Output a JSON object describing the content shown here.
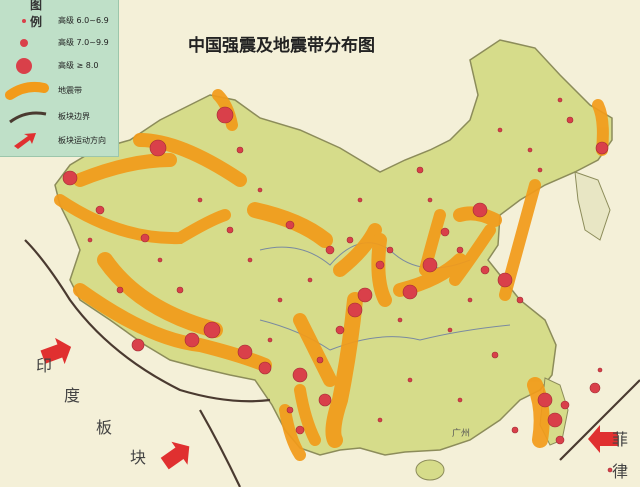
{
  "map": {
    "title": "中国强震及地震带分布图"
  },
  "legend": {
    "title": "图 例",
    "items": [
      {
        "label": "高级 6.0~6.9",
        "symbol": "small-dot-icon"
      },
      {
        "label": "高级 7.0~9.9",
        "symbol": "medium-dot-icon"
      },
      {
        "label": "高级 ≥ 8.0",
        "symbol": "large-dot-icon"
      },
      {
        "label": "地震带",
        "symbol": "seismic-belt-icon"
      },
      {
        "label": "板块边界",
        "symbol": "plate-boundary-icon"
      },
      {
        "label": "板块运动方向",
        "symbol": "plate-motion-arrow-icon"
      }
    ]
  },
  "plates": {
    "india": [
      "印",
      "度",
      "板",
      "块"
    ],
    "philippine": [
      "菲",
      "律"
    ]
  },
  "cities": [
    "广州"
  ],
  "colors": {
    "land": "#d6dc8a",
    "land_edge": "#8c8c5a",
    "sea": "#f4f0d8",
    "belt": "#f29b1a",
    "belt_edge": "#d06a10",
    "quake": "#d9404a",
    "legend_bg": "#bfe0c8",
    "boundary": "#4a3a30",
    "arrow": "#e03030"
  }
}
